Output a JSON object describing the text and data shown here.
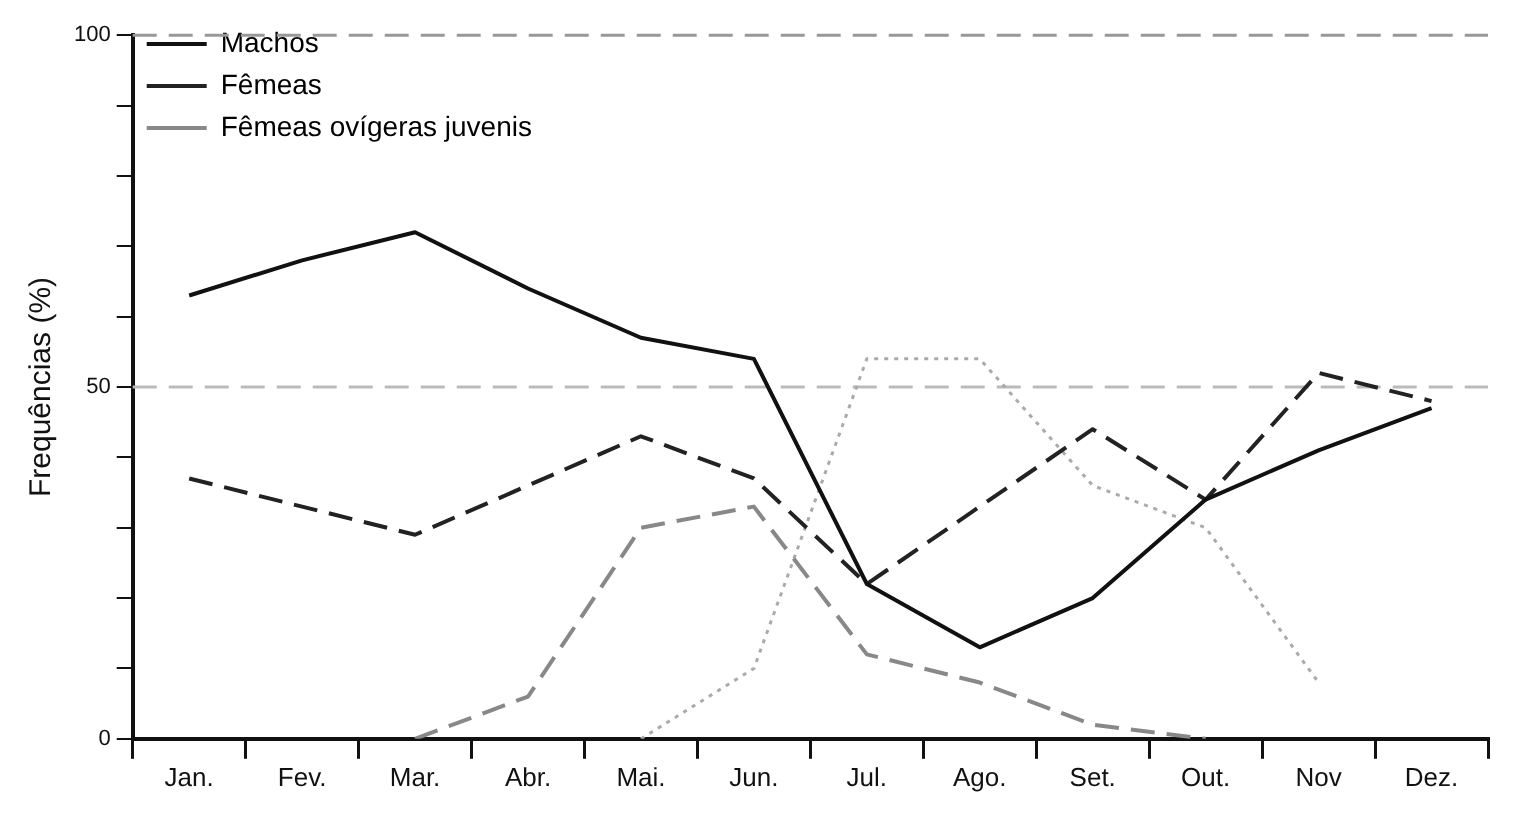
{
  "chart_data": {
    "type": "line",
    "ylabel": "Frequências (%)",
    "categories": [
      "Jan.",
      "Fev.",
      "Mar.",
      "Abr.",
      "Mai.",
      "Jun.",
      "Jul.",
      "Ago.",
      "Set.",
      "Out.",
      "Nov",
      "Dez."
    ],
    "series": [
      {
        "name": "Machos",
        "color": "#111111",
        "line_style": "solid",
        "values": [
          63,
          68,
          72,
          64,
          57,
          54,
          22,
          13,
          20,
          34,
          41,
          47
        ]
      },
      {
        "name": "Fêmeas",
        "color": "#222222",
        "line_style": "dashed",
        "values": [
          37,
          33,
          29,
          36,
          43,
          37,
          22,
          33,
          44,
          34,
          52,
          48
        ]
      },
      {
        "name": "Fêmeas ovígeras juvenis",
        "color": "#888888",
        "line_style": "dashed",
        "values": [
          null,
          null,
          0,
          6,
          30,
          33,
          12,
          8,
          2,
          0,
          null,
          null
        ]
      },
      {
        "color": "#aaaaaa",
        "line_style": "dotted",
        "values": [
          null,
          null,
          null,
          null,
          0,
          10,
          54,
          54,
          36,
          30,
          8,
          null
        ]
      }
    ],
    "ylim": [
      0,
      100
    ],
    "yticks": [
      0,
      {
        "value": 10,
        "label": null
      },
      {
        "value": 20,
        "label": null
      },
      {
        "value": 30,
        "label": null
      },
      {
        "value": 40,
        "label": null
      },
      50,
      {
        "value": 60,
        "label": null
      },
      {
        "value": 70,
        "label": null
      },
      {
        "value": 80,
        "label": null
      },
      {
        "value": 90,
        "label": null
      },
      100
    ],
    "ref_lines": [
      {
        "axis": "y",
        "value": 50,
        "color": "#bbbbbb",
        "line_style": "dashed"
      },
      {
        "axis": "y",
        "value": 100,
        "color": "#999999",
        "line_style": "dashed"
      }
    ],
    "legend": "top left",
    "marker": "none",
    "grid": false
  }
}
